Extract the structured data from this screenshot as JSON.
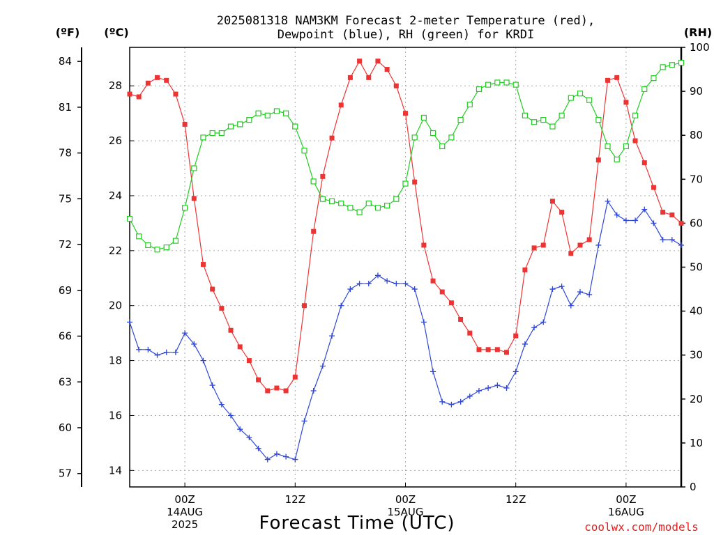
{
  "chart_data": {
    "type": "line",
    "title_lines": [
      "2025081318 NAM3KM Forecast 2-meter Temperature (red),",
      "Dewpoint (blue), RH (green) for KRDI"
    ],
    "xlabel": "Forecast Time (UTC)",
    "credit": "coolwx.com/models",
    "units": {
      "f": "(ºF)",
      "c": "(ºC)",
      "rh": "(RH)"
    },
    "left_f_ticks": [
      57,
      60,
      63,
      66,
      69,
      72,
      75,
      78,
      81,
      84
    ],
    "left_c_ticks": [
      14,
      16,
      18,
      20,
      22,
      24,
      26,
      28
    ],
    "right_rh_ticks": [
      0,
      10,
      20,
      30,
      40,
      50,
      60,
      70,
      80,
      90,
      100
    ],
    "ylim_c": [
      13.4,
      29.4
    ],
    "ylim_rh": [
      0,
      100
    ],
    "xlim_hours": [
      0,
      60
    ],
    "grid": true,
    "x_ticks": [
      {
        "hour": 6,
        "lines": [
          "00Z",
          "14AUG",
          "2025"
        ]
      },
      {
        "hour": 18,
        "lines": [
          "12Z"
        ]
      },
      {
        "hour": 30,
        "lines": [
          "00Z",
          "15AUG"
        ]
      },
      {
        "hour": 42,
        "lines": [
          "12Z"
        ]
      },
      {
        "hour": 54,
        "lines": [
          "00Z",
          "16AUG"
        ]
      }
    ],
    "series": [
      {
        "id": "temperature",
        "units": "C",
        "color": "#ee3333",
        "marker": "filled-square",
        "values": [
          27.7,
          27.6,
          28.1,
          28.3,
          28.2,
          27.7,
          26.6,
          23.9,
          21.5,
          20.6,
          19.9,
          19.1,
          18.5,
          18.0,
          17.3,
          16.9,
          17.0,
          16.9,
          17.4,
          20.0,
          22.7,
          24.7,
          26.1,
          27.3,
          28.3,
          28.9,
          28.3,
          28.9,
          28.6,
          28.0,
          27.0,
          24.5,
          22.2,
          20.9,
          20.5,
          20.1,
          19.5,
          19.0,
          18.4,
          18.4,
          18.4,
          18.3,
          18.9,
          21.3,
          22.1,
          22.2,
          23.8,
          23.4,
          21.9,
          22.2,
          22.4,
          25.3,
          28.2,
          28.3,
          27.4,
          26.0,
          25.2,
          24.3,
          23.4,
          23.3,
          23.0
        ]
      },
      {
        "id": "dewpoint",
        "units": "C",
        "color": "#2e46d8",
        "marker": "plus",
        "values": [
          19.4,
          18.4,
          18.4,
          18.2,
          18.3,
          18.3,
          19.0,
          18.6,
          18.0,
          17.1,
          16.4,
          16.0,
          15.5,
          15.2,
          14.8,
          14.4,
          14.6,
          14.5,
          14.4,
          15.8,
          16.9,
          17.8,
          18.9,
          20.0,
          20.6,
          20.8,
          20.8,
          21.1,
          20.9,
          20.8,
          20.8,
          20.6,
          19.4,
          17.6,
          16.5,
          16.4,
          16.5,
          16.7,
          16.9,
          17.0,
          17.1,
          17.0,
          17.6,
          18.6,
          19.2,
          19.4,
          20.6,
          20.7,
          20.0,
          20.5,
          20.4,
          22.2,
          23.8,
          23.3,
          23.1,
          23.1,
          23.5,
          23.0,
          22.4,
          22.4,
          22.2
        ]
      },
      {
        "id": "rh",
        "units": "%",
        "color": "#22cc22",
        "marker": "open-square",
        "values": [
          61,
          57,
          55,
          54,
          54.5,
          56,
          63.5,
          72.5,
          79.5,
          80.5,
          80.5,
          82,
          82.5,
          83.5,
          85,
          84.5,
          85.5,
          85,
          82,
          76.5,
          69.5,
          65.5,
          65,
          64.5,
          63.5,
          62.5,
          64.5,
          63.5,
          64,
          65.5,
          69,
          79.5,
          84,
          80.5,
          77.5,
          79.5,
          83.5,
          87,
          90.5,
          91.5,
          92,
          92,
          91.5,
          84.5,
          83,
          83.5,
          82,
          84.5,
          88.5,
          89.5,
          88,
          83.5,
          77.5,
          74.5,
          77.5,
          84.5,
          90.5,
          93,
          95.5,
          96,
          96.5
        ]
      }
    ]
  }
}
